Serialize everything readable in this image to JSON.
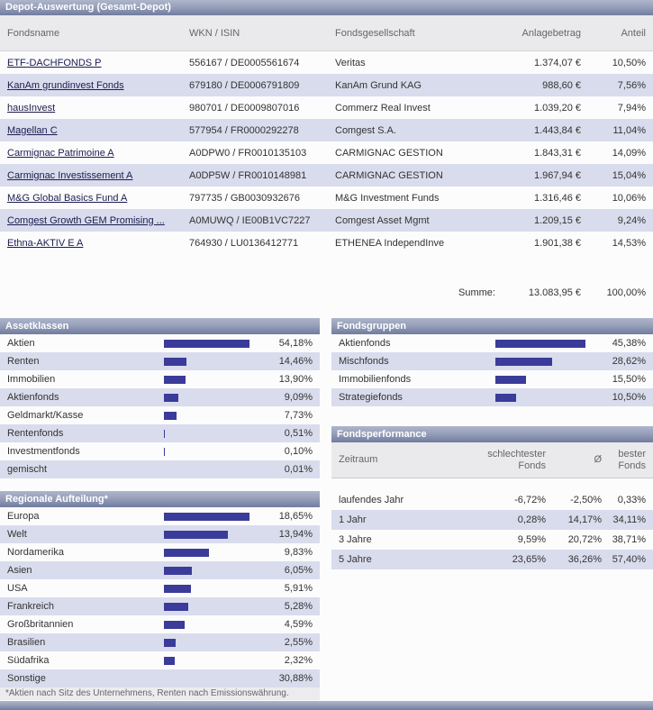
{
  "title": "Depot-Auswertung (Gesamt-Depot)",
  "colors": {
    "bar": "#3b3b9a",
    "header_bar": "#7d88a8",
    "row_alt": "#d9dcec"
  },
  "funds_table": {
    "headers": {
      "name": "Fondsname",
      "wkn": "WKN / ISIN",
      "company": "Fondsgesellschaft",
      "amount": "Anlagebetrag",
      "share": "Anteil"
    },
    "rows": [
      {
        "name": "ETF-DACHFONDS P",
        "wkn": "556167 / DE0005561674",
        "company": "Veritas",
        "amount": "1.374,07 €",
        "share": "10,50%"
      },
      {
        "name": "KanAm grundinvest Fonds",
        "wkn": "679180 / DE0006791809",
        "company": "KanAm Grund KAG",
        "amount": "988,60 €",
        "share": "7,56%"
      },
      {
        "name": "hausInvest",
        "wkn": "980701 / DE0009807016",
        "company": "Commerz Real Invest",
        "amount": "1.039,20 €",
        "share": "7,94%"
      },
      {
        "name": "Magellan C",
        "wkn": "577954 / FR0000292278",
        "company": "Comgest S.A.",
        "amount": "1.443,84 €",
        "share": "11,04%"
      },
      {
        "name": "Carmignac Patrimoine A",
        "wkn": "A0DPW0 / FR0010135103",
        "company": "CARMIGNAC GESTION",
        "amount": "1.843,31 €",
        "share": "14,09%"
      },
      {
        "name": "Carmignac Investissement A",
        "wkn": "A0DP5W / FR0010148981",
        "company": "CARMIGNAC GESTION",
        "amount": "1.967,94 €",
        "share": "15,04%"
      },
      {
        "name": "M&G Global Basics Fund A",
        "wkn": "797735 / GB0030932676",
        "company": "M&G Investment Funds",
        "amount": "1.316,46 €",
        "share": "10,06%"
      },
      {
        "name": "Comgest Growth GEM Promising ...",
        "wkn": "A0MUWQ / IE00B1VC7227",
        "company": "Comgest Asset Mgmt",
        "amount": "1.209,15 €",
        "share": "9,24%"
      },
      {
        "name": "Ethna-AKTIV E A",
        "wkn": "764930 / LU0136412771",
        "company": "ETHENEA IndependInve",
        "amount": "1.901,38 €",
        "share": "14,53%"
      }
    ],
    "summary": {
      "label": "Summe:",
      "amount": "13.083,95 €",
      "share": "100,00%"
    }
  },
  "assetklassen": {
    "title": "Assetklassen",
    "items": [
      {
        "label": "Aktien",
        "pct": "54,18%",
        "value": 54.18
      },
      {
        "label": "Renten",
        "pct": "14,46%",
        "value": 14.46
      },
      {
        "label": "Immobilien",
        "pct": "13,90%",
        "value": 13.9
      },
      {
        "label": "Aktienfonds",
        "pct": "9,09%",
        "value": 9.09
      },
      {
        "label": "Geldmarkt/Kasse",
        "pct": "7,73%",
        "value": 7.73
      },
      {
        "label": "Rentenfonds",
        "pct": "0,51%",
        "value": 0.51
      },
      {
        "label": "Investmentfonds",
        "pct": "0,10%",
        "value": 0.1
      },
      {
        "label": "gemischt",
        "pct": "0,01%",
        "value": 0.01
      }
    ]
  },
  "fondsgruppen": {
    "title": "Fondsgruppen",
    "items": [
      {
        "label": "Aktienfonds",
        "pct": "45,38%",
        "value": 45.38
      },
      {
        "label": "Mischfonds",
        "pct": "28,62%",
        "value": 28.62
      },
      {
        "label": "Immobilienfonds",
        "pct": "15,50%",
        "value": 15.5
      },
      {
        "label": "Strategiefonds",
        "pct": "10,50%",
        "value": 10.5
      }
    ]
  },
  "regionale": {
    "title": "Regionale Aufteilung*",
    "footnote": "*Aktien nach Sitz des Unternehmens, Renten nach Emissionswährung.",
    "items": [
      {
        "label": "Europa",
        "pct": "18,65%",
        "value": 18.65
      },
      {
        "label": "Welt",
        "pct": "13,94%",
        "value": 13.94
      },
      {
        "label": "Nordamerika",
        "pct": "9,83%",
        "value": 9.83
      },
      {
        "label": "Asien",
        "pct": "6,05%",
        "value": 6.05
      },
      {
        "label": "USA",
        "pct": "5,91%",
        "value": 5.91
      },
      {
        "label": "Frankreich",
        "pct": "5,28%",
        "value": 5.28
      },
      {
        "label": "Großbritannien",
        "pct": "4,59%",
        "value": 4.59
      },
      {
        "label": "Brasilien",
        "pct": "2,55%",
        "value": 2.55
      },
      {
        "label": "Südafrika",
        "pct": "2,32%",
        "value": 2.32
      },
      {
        "label": "Sonstige",
        "pct": "30,88%",
        "value": 30.88,
        "bar": false
      }
    ]
  },
  "fondsperformance": {
    "title": "Fondsperformance",
    "headers": {
      "zeitraum": "Zeitraum",
      "worst": "schlechtester Fonds",
      "avg": "Ø",
      "best": "bester Fonds"
    },
    "rows": [
      {
        "period": "laufendes Jahr",
        "worst": "-6,72%",
        "avg": "-2,50%",
        "best": "0,33%"
      },
      {
        "period": "1 Jahr",
        "worst": "0,28%",
        "avg": "14,17%",
        "best": "34,11%"
      },
      {
        "period": "3 Jahre",
        "worst": "9,59%",
        "avg": "20,72%",
        "best": "38,71%"
      },
      {
        "period": "5 Jahre",
        "worst": "23,65%",
        "avg": "36,26%",
        "best": "57,40%"
      }
    ]
  }
}
